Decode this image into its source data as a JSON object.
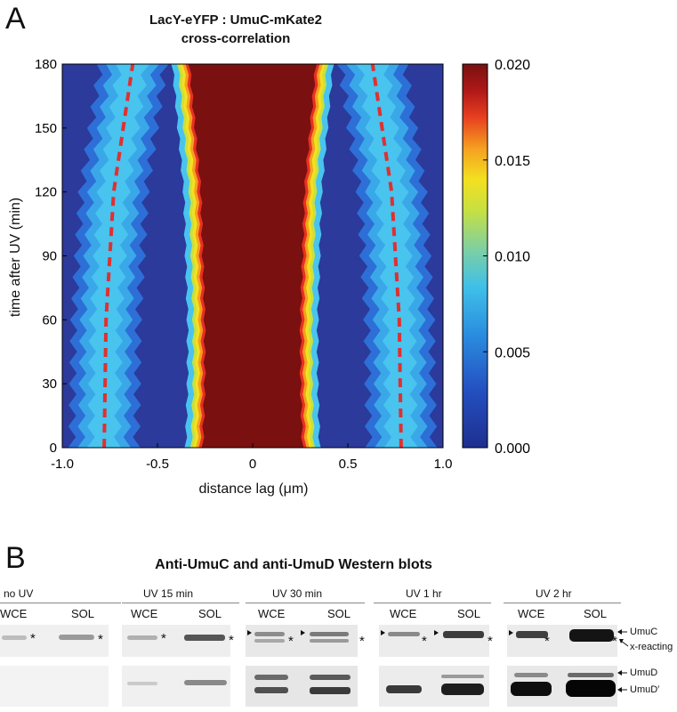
{
  "panel_a": {
    "letter": "A",
    "title_line1": "LacY-eYFP : UmuC-mKate2",
    "title_line2": "cross-correlation",
    "xlabel": "distance lag (μm)",
    "ylabel": "time after UV (min)"
  },
  "chart_data": {
    "type": "heatmap",
    "title": "LacY-eYFP : UmuC-mKate2 cross-correlation",
    "xlabel": "distance lag (μm)",
    "ylabel": "time after UV (min)",
    "xlim": [
      -1.0,
      1.0
    ],
    "ylim": [
      0,
      180
    ],
    "x_ticks": [
      "-1.0",
      "-0.5",
      "0",
      "0.5",
      "1.0"
    ],
    "y_ticks": [
      "0",
      "30",
      "60",
      "90",
      "120",
      "150",
      "180"
    ],
    "colorbar": {
      "min": 0.0,
      "max": 0.02,
      "ticks": [
        "0.000",
        "0.005",
        "0.010",
        "0.015",
        "0.020"
      ]
    },
    "central_band_halfwidth_um": [
      {
        "t": 0,
        "w": 0.26
      },
      {
        "t": 30,
        "w": 0.25
      },
      {
        "t": 60,
        "w": 0.25
      },
      {
        "t": 90,
        "w": 0.26
      },
      {
        "t": 120,
        "w": 0.27
      },
      {
        "t": 150,
        "w": 0.3
      },
      {
        "t": 180,
        "w": 0.33
      }
    ],
    "peak_trend_lines_um": [
      {
        "t": 0,
        "x": 0.78
      },
      {
        "t": 60,
        "x": 0.77
      },
      {
        "t": 120,
        "x": 0.73
      },
      {
        "t": 180,
        "x": 0.63
      }
    ],
    "colors": {
      "low": "#2b3a9b",
      "high": "#7a1010",
      "trend": "#e03030"
    }
  },
  "panel_b": {
    "letter": "B",
    "title": "Anti-UmuC and anti-UmuD Western blots",
    "groups": [
      {
        "condition": "no UV",
        "lane1": "WCE",
        "lane2": "SOL"
      },
      {
        "condition": "UV 15 min",
        "lane1": "WCE",
        "lane2": "SOL"
      },
      {
        "condition": "UV 30 min",
        "lane1": "WCE",
        "lane2": "SOL"
      },
      {
        "condition": "UV 1 hr",
        "lane1": "WCE",
        "lane2": "SOL"
      },
      {
        "condition": "UV 2 hr",
        "lane1": "WCE",
        "lane2": "SOL"
      }
    ],
    "asterisk": "*",
    "labels": {
      "umuc": "UmuC",
      "xreacting": "x-reacting",
      "umud": "UmuD",
      "umud_prime": "UmuD′"
    }
  }
}
